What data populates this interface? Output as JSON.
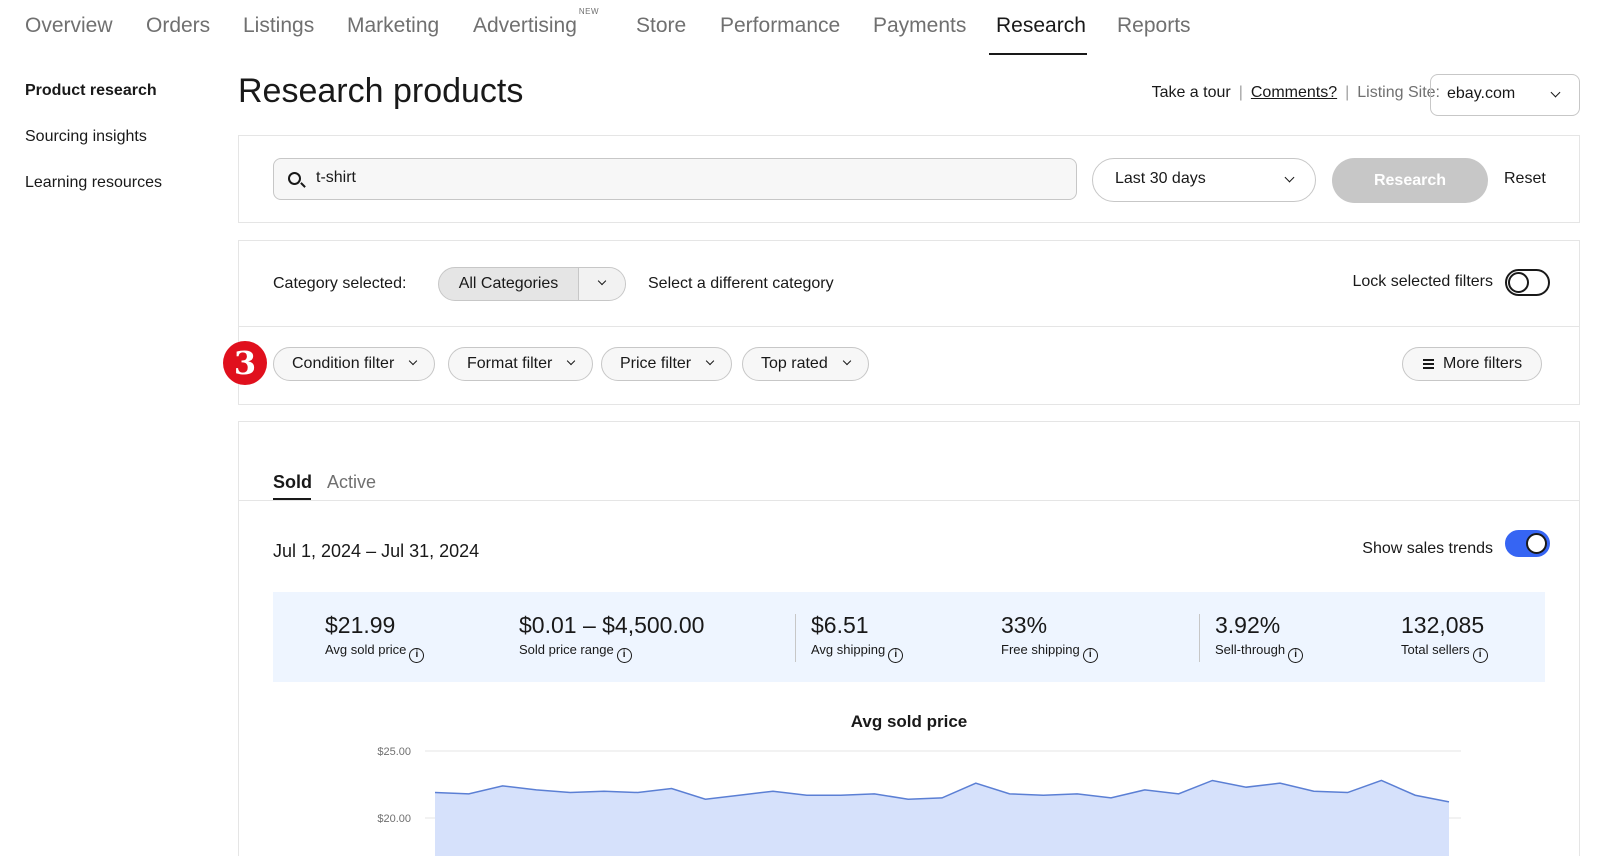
{
  "nav": {
    "tabs": [
      {
        "label": "Overview"
      },
      {
        "label": "Orders"
      },
      {
        "label": "Listings"
      },
      {
        "label": "Marketing"
      },
      {
        "label": "Advertising",
        "badge": "NEW"
      },
      {
        "label": "Store"
      },
      {
        "label": "Performance"
      },
      {
        "label": "Payments"
      },
      {
        "label": "Research",
        "active": true
      },
      {
        "label": "Reports"
      }
    ]
  },
  "sidebar": {
    "items": [
      {
        "label": "Product research",
        "active": true
      },
      {
        "label": "Sourcing insights"
      },
      {
        "label": "Learning resources"
      }
    ]
  },
  "header": {
    "title": "Research products",
    "tour": "Take a tour",
    "comments": "Comments?",
    "listing_site_label": "Listing Site:",
    "listing_site_value": "ebay.com"
  },
  "search": {
    "value": "t-shirt",
    "date_range": "Last 30 days",
    "research_label": "Research",
    "reset_label": "Reset"
  },
  "filters": {
    "category_label": "Category selected:",
    "category_value": "All Categories",
    "different_category": "Select a different category",
    "lock_label": "Lock selected filters",
    "lock_on": false,
    "chips": [
      "Condition filter",
      "Format filter",
      "Price filter",
      "Top rated"
    ],
    "more_filters": "More filters",
    "step_badge": "3"
  },
  "results": {
    "tabs": [
      "Sold",
      "Active"
    ],
    "active_tab": "Sold",
    "date_range": "Jul 1, 2024 – Jul 31, 2024",
    "trends_label": "Show sales trends",
    "trends_on": true,
    "stats": [
      {
        "value": "$21.99",
        "label": "Avg sold price"
      },
      {
        "value": "$0.01 – $4,500.00",
        "label": "Sold price range"
      },
      {
        "value": "$6.51",
        "label": "Avg shipping"
      },
      {
        "value": "33%",
        "label": "Free shipping"
      },
      {
        "value": "3.92%",
        "label": "Sell-through"
      },
      {
        "value": "132,085",
        "label": "Total sellers"
      }
    ]
  },
  "colors": {
    "accent": "#3665f3",
    "chart_line": "#5b7fd4",
    "chart_fill": "#d6e1fb",
    "badge": "#e0101d",
    "stats_bg": "#eef5ff"
  },
  "chart_data": {
    "type": "area",
    "title": "Avg sold price",
    "y_tick_labels": [
      "$25.00",
      "$20.00"
    ],
    "y_ticks": [
      25,
      20
    ],
    "ylim": [
      20,
      25
    ],
    "grid": true,
    "x": [
      1,
      2,
      3,
      4,
      5,
      6,
      7,
      8,
      9,
      10,
      11,
      12,
      13,
      14,
      15,
      16,
      17,
      18,
      19,
      20,
      21,
      22,
      23,
      24,
      25,
      26,
      27,
      28,
      29,
      30,
      31
    ],
    "values": [
      21.9,
      21.8,
      22.4,
      22.1,
      21.9,
      22.0,
      21.9,
      22.2,
      21.4,
      21.7,
      22.0,
      21.7,
      21.7,
      21.8,
      21.4,
      21.5,
      22.6,
      21.8,
      21.7,
      21.8,
      21.5,
      22.1,
      21.8,
      22.8,
      22.3,
      22.6,
      22.0,
      21.9,
      22.8,
      21.7,
      21.2
    ]
  }
}
